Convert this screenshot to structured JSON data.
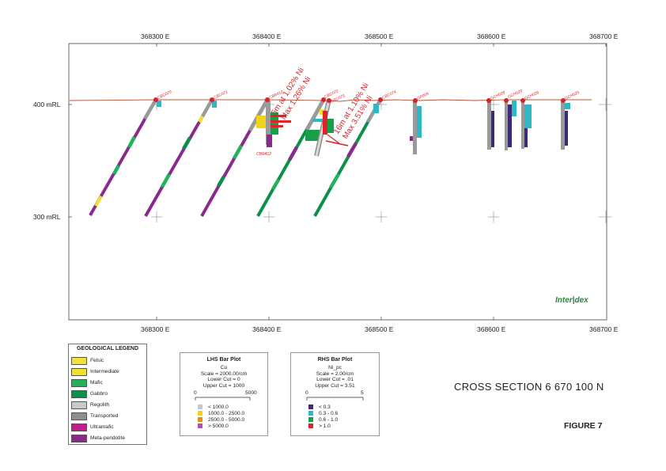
{
  "axes": {
    "x_ticks_top": [
      "368300 E",
      "368400 E",
      "368500 E",
      "368600 E",
      "368700 E"
    ],
    "x_ticks_bottom": [
      "368300 E",
      "368400 E",
      "368500 E",
      "368600 E",
      "368700 E"
    ],
    "y_ticks": [
      "400 mRL",
      "300 mRL"
    ]
  },
  "holes": [
    "CBC070",
    "CBC071",
    "CBR412",
    "CBC072",
    "CBC073",
    "CBC074",
    "GP009",
    "GCH028",
    "GCH029",
    "GCH026",
    "GCH025"
  ],
  "annotations": {
    "label_below": "CBR412",
    "intercept_1_line1": "5m at 1.02% Ni",
    "intercept_1_line2": "Max 1.26% Ni",
    "intercept_2_line1": "16m at 1.10% Ni",
    "intercept_2_line2": "Max 3.51% Ni"
  },
  "logo": {
    "left": "Inter",
    "right": "dex"
  },
  "geological_legend": {
    "title": "GEOLOGICAL LEGEND",
    "items": [
      {
        "label": "Felsic",
        "color": "#f4e23c"
      },
      {
        "label": "Intermediate",
        "color": "#f0e030"
      },
      {
        "label": "Mafic",
        "color": "#22b35a"
      },
      {
        "label": "Gabbro",
        "color": "#0d8f4a"
      },
      {
        "label": "Regolith",
        "color": "#c9c9c9"
      },
      {
        "label": "Transported",
        "color": "#8e8e8e"
      },
      {
        "label": "Ultramafic",
        "color": "#c21d8b"
      },
      {
        "label": "Meta-peridotite",
        "color": "#8a2a8c"
      }
    ]
  },
  "lhs_bar_plot": {
    "title": "LHS Bar Plot",
    "element": "Cu",
    "scale": "Scale = 2000.00/cm",
    "lower_cut": "Lower Cut = 0",
    "upper_cut": "Upper Cut = 1000",
    "axis_min": "0",
    "axis_max": "5000",
    "classes": [
      {
        "label": "< 1000.0",
        "color": "#c8c8c8"
      },
      {
        "label": "1000.0 - 2500.0",
        "color": "#f2d21a"
      },
      {
        "label": "2500.0 - 5000.0",
        "color": "#f08a1c"
      },
      {
        "label": "> 5000.0",
        "color": "#b04fb8"
      }
    ]
  },
  "rhs_bar_plot": {
    "title": "RHS Bar Plot",
    "element": "Ni_pc",
    "scale": "Scale = 2.00/cm",
    "lower_cut": "Lower Cut = .01",
    "upper_cut": "Upper Cut = 3.51",
    "axis_min": "0",
    "axis_max": "5",
    "classes": [
      {
        "label": "< 0.3",
        "color": "#3c2a7a"
      },
      {
        "label": "0.3 - 0.6",
        "color": "#2fb8c4"
      },
      {
        "label": "0.6 - 1.0",
        "color": "#17a04a"
      },
      {
        "label": "> 1.0",
        "color": "#e0222a"
      }
    ]
  },
  "section_title": "CROSS SECTION 6 670 100 N",
  "figure_label": "FIGURE 7",
  "colors": {
    "accent_red": "#d8232a",
    "topography": "#b5583c",
    "frame": "#444444"
  }
}
